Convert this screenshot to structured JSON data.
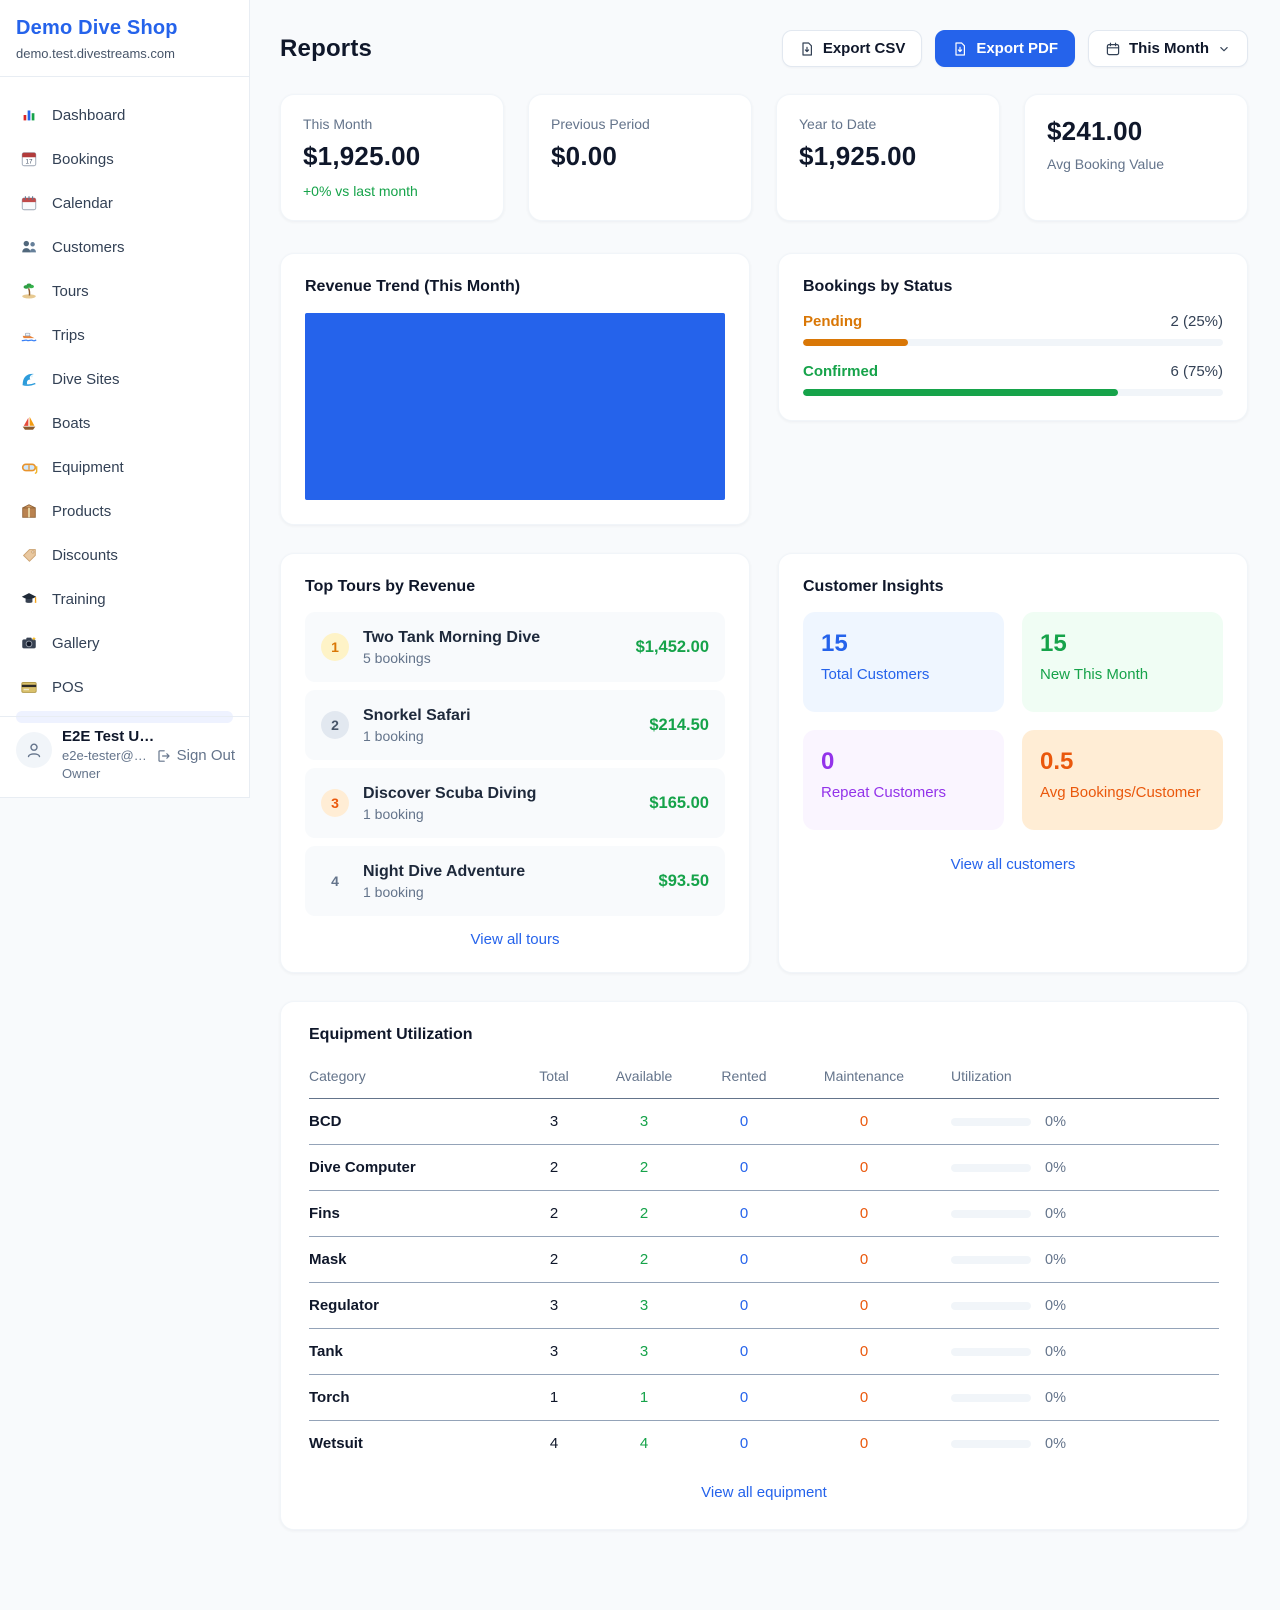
{
  "app": {
    "accent_color": "#2563eb",
    "page_background": "#f8fafc"
  },
  "sidebar": {
    "brand_name": "Demo Dive Shop",
    "brand_domain": "demo.test.divestreams.com",
    "nav": [
      {
        "label": "Dashboard",
        "icon": "bar-chart-icon"
      },
      {
        "label": "Bookings",
        "icon": "calendar-date-icon"
      },
      {
        "label": "Calendar",
        "icon": "spiral-calendar-icon"
      },
      {
        "label": "Customers",
        "icon": "people-icon"
      },
      {
        "label": "Tours",
        "icon": "island-icon"
      },
      {
        "label": "Trips",
        "icon": "speedboat-icon"
      },
      {
        "label": "Dive Sites",
        "icon": "wave-icon"
      },
      {
        "label": "Boats",
        "icon": "sailboat-icon"
      },
      {
        "label": "Equipment",
        "icon": "dive-mask-icon"
      },
      {
        "label": "Products",
        "icon": "package-icon"
      },
      {
        "label": "Discounts",
        "icon": "tag-icon"
      },
      {
        "label": "Training",
        "icon": "graduation-cap-icon"
      },
      {
        "label": "Gallery",
        "icon": "camera-icon"
      },
      {
        "label": "POS",
        "icon": "credit-card-icon"
      }
    ],
    "user": {
      "name": "E2E Test U…",
      "email": "e2e-tester@…",
      "role": "Owner",
      "sign_out_label": "Sign Out"
    }
  },
  "header": {
    "title": "Reports",
    "export_csv_label": "Export CSV",
    "export_pdf_label": "Export PDF",
    "period_label": "This Month"
  },
  "stats": {
    "this_month": {
      "label": "This Month",
      "value": "$1,925.00",
      "delta": "+0% vs last month"
    },
    "previous_period": {
      "label": "Previous Period",
      "value": "$0.00"
    },
    "year_to_date": {
      "label": "Year to Date",
      "value": "$1,925.00"
    },
    "avg_booking": {
      "value": "$241.00",
      "label": "Avg Booking Value"
    }
  },
  "revenue_trend": {
    "title": "Revenue Trend (This Month)",
    "bar_color": "#2563eb",
    "bar_width_pct": 100
  },
  "bookings_status": {
    "title": "Bookings by Status",
    "items": [
      {
        "label": "Pending",
        "count": "2 (25%)",
        "pct": 25,
        "color": "#d97706"
      },
      {
        "label": "Confirmed",
        "count": "6 (75%)",
        "pct": 75,
        "color": "#16a34a"
      }
    ]
  },
  "top_tours": {
    "title": "Top Tours by Revenue",
    "items": [
      {
        "rank": "1",
        "name": "Two Tank Morning Dive",
        "bookings": "5 bookings",
        "revenue": "$1,452.00"
      },
      {
        "rank": "2",
        "name": "Snorkel Safari",
        "bookings": "1 booking",
        "revenue": "$214.50"
      },
      {
        "rank": "3",
        "name": "Discover Scuba Diving",
        "bookings": "1 booking",
        "revenue": "$165.00"
      },
      {
        "rank": "4",
        "name": "Night Dive Adventure",
        "bookings": "1 booking",
        "revenue": "$93.50"
      }
    ],
    "link": "View all tours"
  },
  "customer_insights": {
    "title": "Customer Insights",
    "tiles": [
      {
        "value": "15",
        "label": "Total Customers",
        "color": "#2563eb"
      },
      {
        "value": "15",
        "label": "New This Month",
        "color": "#16a34a"
      },
      {
        "value": "0",
        "label": "Repeat Customers",
        "color": "#9333ea"
      },
      {
        "value": "0.5",
        "label": "Avg Bookings/Customer",
        "color": "#ea580c"
      }
    ],
    "link": "View all customers"
  },
  "equipment": {
    "title": "Equipment Utilization",
    "headers": [
      "Category",
      "Total",
      "Available",
      "Rented",
      "Maintenance",
      "Utilization"
    ],
    "rows": [
      {
        "category": "BCD",
        "total": "3",
        "available": "3",
        "rented": "0",
        "maintenance": "0",
        "utilization": "0%",
        "pct": 0
      },
      {
        "category": "Dive Computer",
        "total": "2",
        "available": "2",
        "rented": "0",
        "maintenance": "0",
        "utilization": "0%",
        "pct": 0
      },
      {
        "category": "Fins",
        "total": "2",
        "available": "2",
        "rented": "0",
        "maintenance": "0",
        "utilization": "0%",
        "pct": 0
      },
      {
        "category": "Mask",
        "total": "2",
        "available": "2",
        "rented": "0",
        "maintenance": "0",
        "utilization": "0%",
        "pct": 0
      },
      {
        "category": "Regulator",
        "total": "3",
        "available": "3",
        "rented": "0",
        "maintenance": "0",
        "utilization": "0%",
        "pct": 0
      },
      {
        "category": "Tank",
        "total": "3",
        "available": "3",
        "rented": "0",
        "maintenance": "0",
        "utilization": "0%",
        "pct": 0
      },
      {
        "category": "Torch",
        "total": "1",
        "available": "1",
        "rented": "0",
        "maintenance": "0",
        "utilization": "0%",
        "pct": 0
      },
      {
        "category": "Wetsuit",
        "total": "4",
        "available": "4",
        "rented": "0",
        "maintenance": "0",
        "utilization": "0%",
        "pct": 0
      }
    ],
    "link": "View all equipment"
  }
}
